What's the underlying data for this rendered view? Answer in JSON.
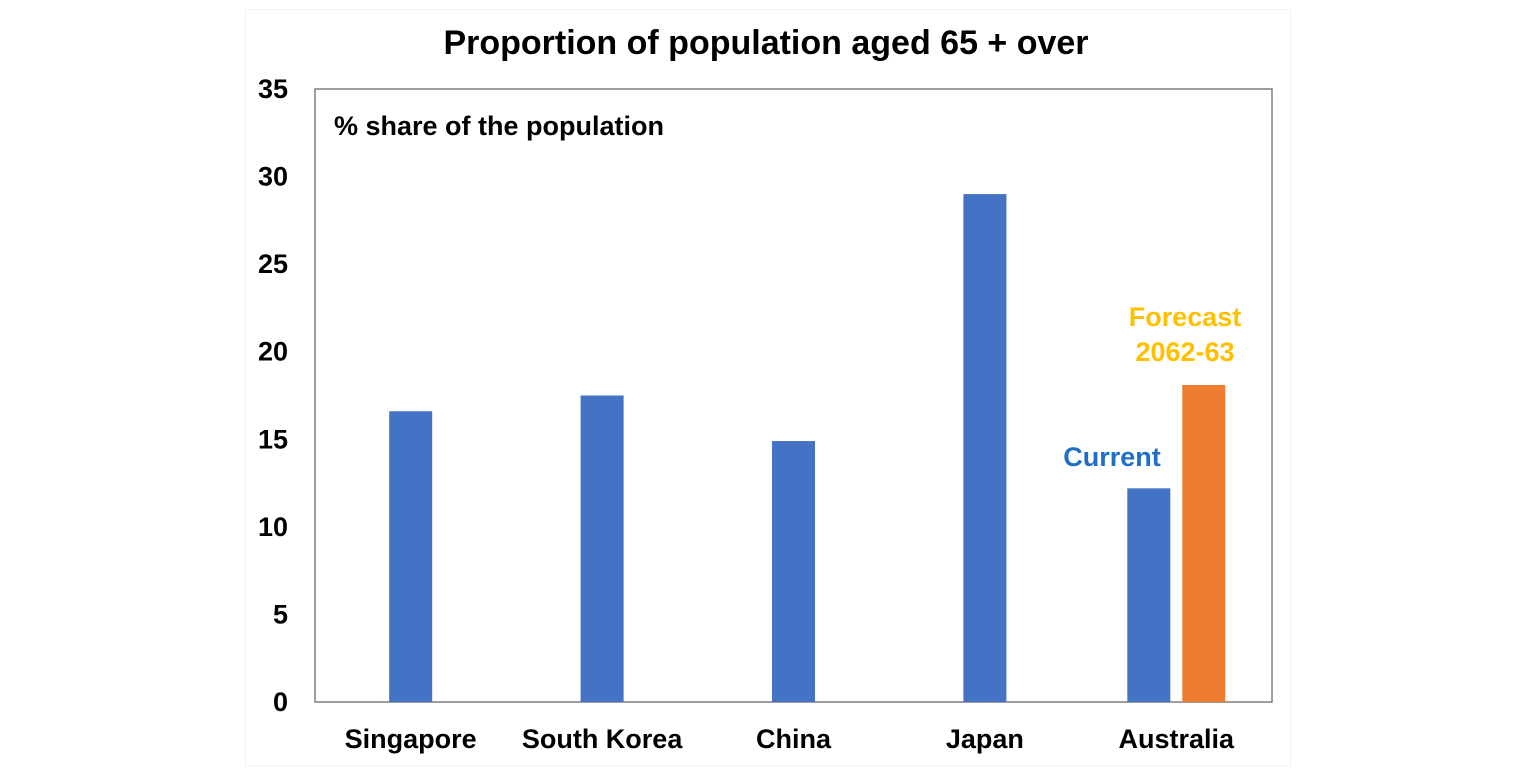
{
  "chart_data": {
    "type": "bar",
    "title": "Proportion of population aged 65 + over",
    "subtitle": "% share of the population",
    "xlabel": "",
    "ylabel": "",
    "ylim": [
      0,
      35
    ],
    "yticks": [
      0,
      5,
      10,
      15,
      20,
      25,
      30,
      35
    ],
    "grid": false,
    "categories": [
      "Singapore",
      "South Korea",
      "China",
      "Japan",
      "Australia"
    ],
    "series": [
      {
        "name": "Current",
        "color": "#4472C4",
        "values": [
          16.6,
          17.5,
          14.9,
          29.0,
          12.2
        ]
      },
      {
        "name": "Forecast 2062-63",
        "color": "#ED7D31",
        "values": [
          null,
          null,
          null,
          null,
          18.1
        ]
      }
    ],
    "annotations": [
      {
        "text": "Current",
        "color": "#1F6FC5"
      },
      {
        "text": "Forecast",
        "color": "#FFC000"
      },
      {
        "text": "2062-63",
        "color": "#FFC000"
      }
    ]
  }
}
